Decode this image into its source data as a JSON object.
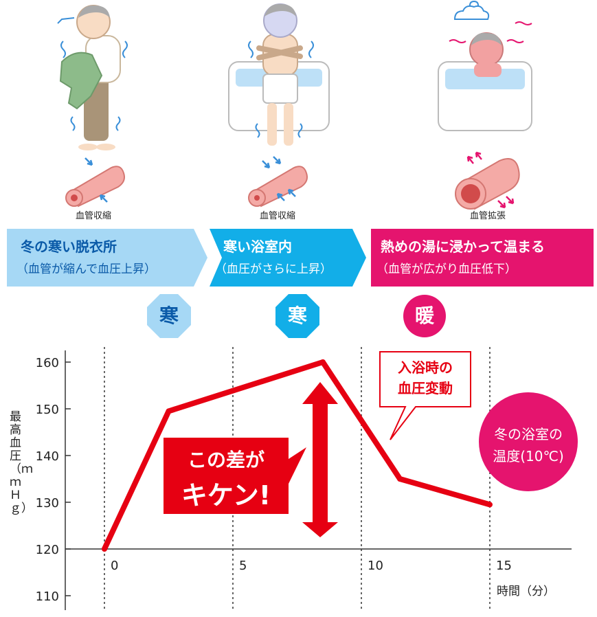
{
  "stages": [
    {
      "title": "冬の寒い脱衣所",
      "subtitle": "（血管が縮んで血圧上昇）",
      "vessel": "血管収縮",
      "badge": "寒"
    },
    {
      "title": "寒い浴室内",
      "subtitle": "（血圧がさらに上昇）",
      "vessel": "血管収縮",
      "badge": "寒"
    },
    {
      "title": "熱めの湯に浸かって温まる",
      "subtitle": "（血管が広がり血圧低下）",
      "vessel": "血管拡張",
      "badge": "暖"
    }
  ],
  "colors": {
    "light_blue": "#a6d8f5",
    "blue": "#12aee8",
    "pink": "#e5146e",
    "red": "#e60012",
    "text_blue": "#0a5aa8"
  },
  "annotations": {
    "callout": "入浴時の\n血圧変動",
    "danger_line1": "この差が",
    "danger_line2": "キケン!",
    "temp_line1": "冬の浴室の",
    "temp_line2": "温度(10℃)"
  },
  "chart_data": {
    "type": "line",
    "x": [
      0,
      2.5,
      8.5,
      11.5,
      15
    ],
    "y": [
      120,
      149.5,
      160,
      135,
      129.5
    ],
    "xticks": [
      0,
      5,
      10,
      15
    ],
    "yticks": [
      110,
      120,
      130,
      140,
      150,
      160
    ],
    "xlim": [
      -3,
      18
    ],
    "ylim": [
      108,
      164
    ],
    "xlabel": "時間（分）",
    "ylabel": "最高血圧（ｍｍＨｇ）",
    "grid": "vertical dashed"
  }
}
